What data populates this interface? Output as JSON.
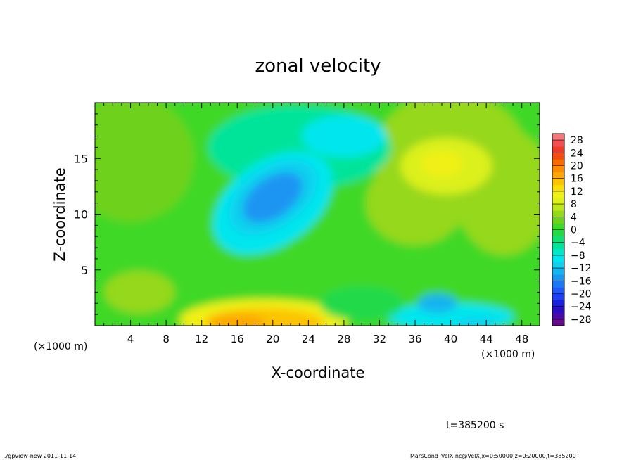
{
  "chart_data": {
    "type": "heatmap",
    "title": "zonal velocity",
    "xlabel": "X-coordinate",
    "ylabel": "Z-coordinate",
    "x_unit_left": "(×1000 m)",
    "x_unit_right": "(×1000 m)",
    "time_label": "t=385200 s",
    "xlim": [
      0,
      50
    ],
    "ylim": [
      0,
      20
    ],
    "x_ticks": [
      4,
      8,
      12,
      16,
      20,
      24,
      28,
      32,
      36,
      40,
      44,
      48
    ],
    "y_ticks": [
      5,
      10,
      15
    ],
    "colorbar": {
      "levels": [
        -30,
        -28,
        -26,
        -24,
        -22,
        -20,
        -18,
        -16,
        -14,
        -12,
        -10,
        -8,
        -6,
        -4,
        -2,
        0,
        2,
        4,
        6,
        8,
        10,
        12,
        14,
        16,
        18,
        20,
        22,
        24,
        26,
        28,
        30
      ],
      "colors": [
        "#6a0a8c",
        "#4b0aa6",
        "#2a0fc2",
        "#1a20dc",
        "#1f3ff0",
        "#2258f5",
        "#1d78f4",
        "#1a95f2",
        "#15b4ef",
        "#10d0ee",
        "#00e6ee",
        "#00e8c8",
        "#00e49a",
        "#10e070",
        "#20da48",
        "#40d828",
        "#6ed21c",
        "#96d81a",
        "#bce81a",
        "#dcf01a",
        "#f0f014",
        "#f8e000",
        "#fcc400",
        "#fca800",
        "#fc8c00",
        "#f86c00",
        "#f44c10",
        "#f03a28",
        "#f05050",
        "#f47878"
      ],
      "tick_labels": [
        "28",
        "24",
        "20",
        "16",
        "12",
        "8",
        "4",
        "0",
        "-4",
        "-8",
        "-12",
        "-16",
        "-20",
        "-24",
        "-28"
      ]
    },
    "features": [
      {
        "kind": "min",
        "x": 20,
        "z": 11.5,
        "value": -18
      },
      {
        "kind": "max",
        "x": 19,
        "z": 0.8,
        "value": 16
      },
      {
        "kind": "max",
        "x": 39,
        "z": 14.3,
        "value": 10
      },
      {
        "kind": "min",
        "x": 38.5,
        "z": 2.3,
        "value": -16
      }
    ]
  },
  "footer": {
    "left": "./gpview-new  2011-11-14",
    "right": "MarsCond_VelX.nc@VelX,x=0:50000,z=0:20000,t=385200"
  }
}
